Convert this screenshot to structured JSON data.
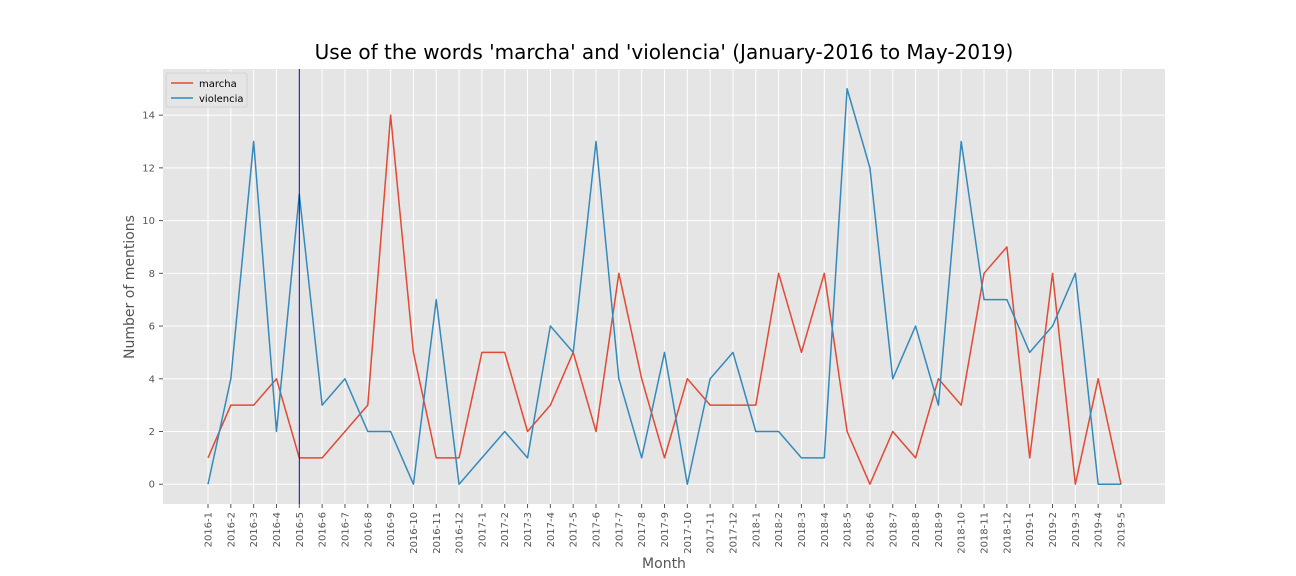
{
  "chart_data": {
    "type": "line",
    "title": "Use of the words 'marcha' and 'violencia' (January-2016 to May-2019)",
    "xlabel": "Month",
    "ylabel": "Number of mentions",
    "ylim": [
      -0.75,
      15.75
    ],
    "yticks": [
      0,
      2,
      4,
      6,
      8,
      10,
      12,
      14
    ],
    "grid": true,
    "legend_position": "top-left",
    "marker_line": {
      "x": "2016-5",
      "color": "#0000aa"
    },
    "categories": [
      "2016-1",
      "2016-2",
      "2016-3",
      "2016-4",
      "2016-5",
      "2016-6",
      "2016-7",
      "2016-8",
      "2016-9",
      "2016-10",
      "2016-11",
      "2016-12",
      "2017-1",
      "2017-2",
      "2017-3",
      "2017-4",
      "2017-5",
      "2017-6",
      "2017-7",
      "2017-8",
      "2017-9",
      "2017-10",
      "2017-11",
      "2017-12",
      "2018-1",
      "2018-2",
      "2018-3",
      "2018-4",
      "2018-5",
      "2018-6",
      "2018-7",
      "2018-8",
      "2018-9",
      "2018-10",
      "2018-11",
      "2018-12",
      "2019-1",
      "2019-2",
      "2019-3",
      "2019-4",
      "2019-5"
    ],
    "series": [
      {
        "name": "marcha",
        "color": "#e24a33",
        "values": [
          1,
          3,
          3,
          4,
          1,
          1,
          2,
          3,
          14,
          5,
          1,
          1,
          5,
          5,
          2,
          3,
          5,
          2,
          8,
          4,
          1,
          4,
          3,
          3,
          3,
          8,
          5,
          8,
          2,
          0,
          2,
          1,
          4,
          3,
          8,
          9,
          1,
          8,
          0,
          4,
          0
        ]
      },
      {
        "name": "violencia",
        "color": "#348abd",
        "values": [
          0,
          4,
          13,
          2,
          11,
          3,
          4,
          2,
          2,
          0,
          7,
          0,
          1,
          2,
          1,
          6,
          5,
          13,
          4,
          1,
          5,
          0,
          4,
          5,
          2,
          2,
          1,
          1,
          15,
          12,
          4,
          6,
          3,
          13,
          7,
          7,
          5,
          6,
          8,
          0,
          0
        ]
      }
    ],
    "colors": {
      "plot_background": "#e5e5e5",
      "grid": "#ffffff"
    }
  }
}
